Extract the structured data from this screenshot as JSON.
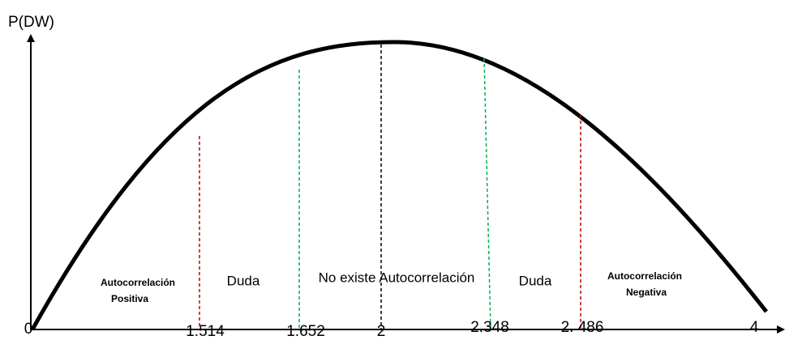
{
  "y_axis_label": "P(DW)",
  "x_labels": [
    "0",
    "1.514",
    "1.652",
    "2",
    "2.348",
    "2. 486",
    "4"
  ],
  "regions": [
    {
      "lines": [
        "Autocorrelación",
        "Positiva"
      ]
    },
    {
      "lines": [
        "Duda"
      ]
    },
    {
      "lines": [
        "No existe Autocorrelación"
      ]
    },
    {
      "lines": [
        "Duda"
      ]
    },
    {
      "lines": [
        "Autocorrelación",
        "Negativa"
      ]
    }
  ]
}
